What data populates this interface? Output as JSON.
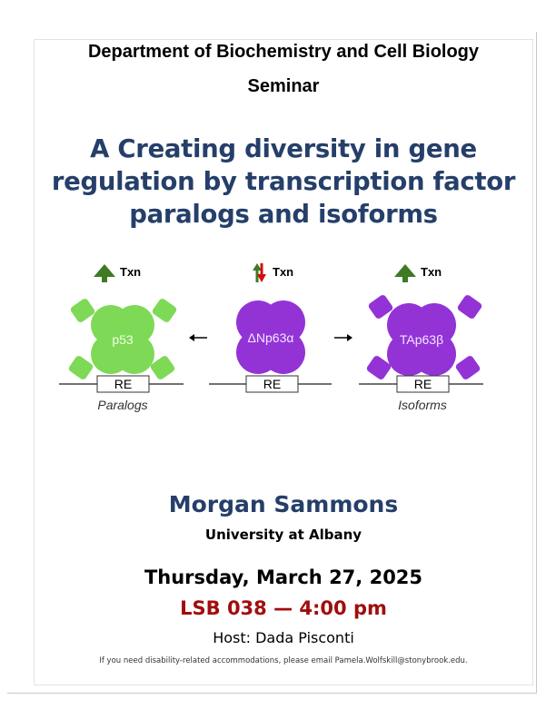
{
  "header": {
    "department": "Department of Biochemistry and Cell Biology",
    "event_type": "Seminar"
  },
  "title": "A Creating diversity in gene regulation by transcription factor paralogs and isoforms",
  "figure": {
    "txn_label": "Txn",
    "left": {
      "protein": "p53",
      "element": "RE",
      "caption": "Paralogs",
      "color": "#7ed957"
    },
    "center": {
      "protein": "ΔNp63α",
      "element": "RE",
      "color": "#9333d6"
    },
    "right": {
      "protein": "TAp63β",
      "element": "RE",
      "caption": "Isoforms",
      "color": "#9333d6"
    },
    "up_arrow_color": "#3f7a24",
    "down_arrow_color": "#d01010"
  },
  "speaker": {
    "name": "Morgan Sammons",
    "institution": "University at Albany"
  },
  "event": {
    "date": "Thursday, March 27, 2025",
    "location_time": "LSB 038 — 4:00 pm",
    "host": "Host: Dada Pisconti"
  },
  "footer": {
    "accommodation_note": "If you need disability-related accommodations, please email Pamela.Wolfskill@stonybrook.edu."
  }
}
